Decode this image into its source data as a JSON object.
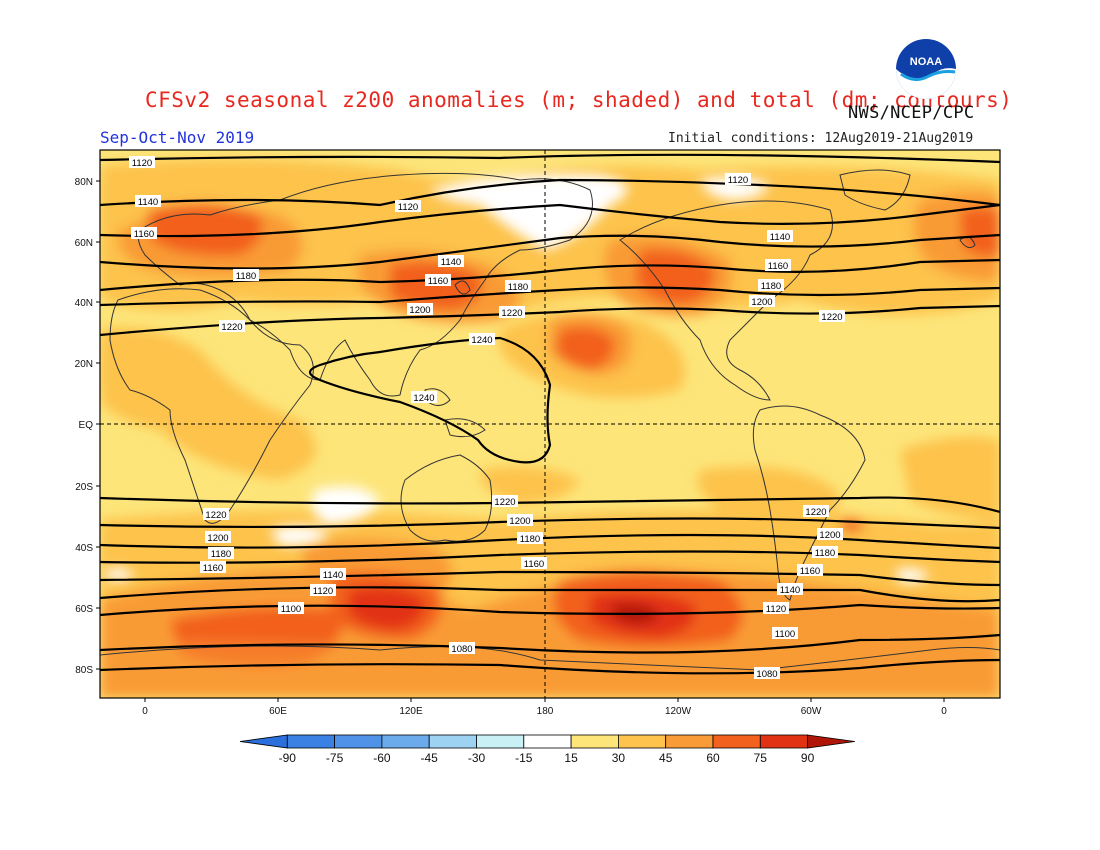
{
  "header": {
    "title": "CFSv2 seasonal z200 anomalies (m; shaded) and total (dm; contours)",
    "source": "NWS/NCEP/CPC",
    "season": "Sep-Oct-Nov 2019",
    "initial_conditions": "Initial conditions: 12Aug2019-21Aug2019",
    "logo_text": "NOAA"
  },
  "map": {
    "lat_labels": [
      "80N",
      "60N",
      "40N",
      "20N",
      "EQ",
      "20S",
      "40S",
      "60S",
      "80S"
    ],
    "lon_labels": [
      "0",
      "60E",
      "120E",
      "180",
      "120W",
      "60W",
      "0"
    ],
    "contour_labels": [
      "1080",
      "1100",
      "1120",
      "1140",
      "1160",
      "1180",
      "1200",
      "1220",
      "1240"
    ],
    "colors": {
      "c15": "#fde57a",
      "c30": "#fdc34c",
      "c45": "#f99b36",
      "c60": "#f2611e",
      "c75": "#e23214",
      "c90": "#b01607",
      "white": "#ffffff"
    }
  },
  "colorbar": {
    "tick_labels": [
      "-90",
      "-75",
      "-60",
      "-45",
      "-30",
      "-15",
      "15",
      "30",
      "45",
      "60",
      "75",
      "90"
    ],
    "colors": [
      "#2a6fdb",
      "#3b80e3",
      "#4f92e8",
      "#6cabeb",
      "#9ed2f3",
      "#c8f0f5",
      "#ffffff",
      "#fde57a",
      "#fdc34c",
      "#f99b36",
      "#f2611e",
      "#e23214",
      "#b01607"
    ]
  }
}
